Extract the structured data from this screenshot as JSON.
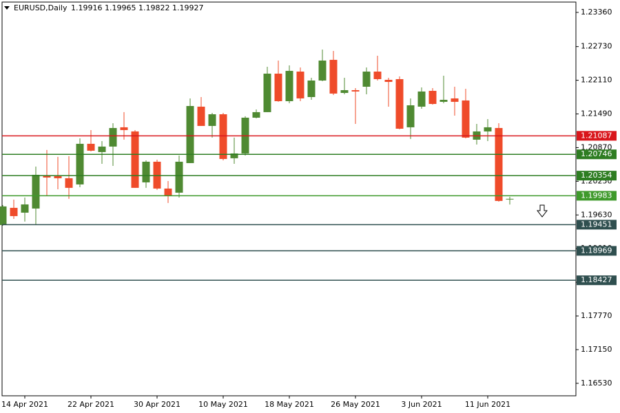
{
  "chart_data": {
    "type": "candlestick",
    "title": "EURUSD,Daily",
    "categories": [
      null,
      null,
      "14 Apr 2021",
      null,
      null,
      null,
      null,
      null,
      "22 Apr 2021",
      null,
      null,
      null,
      null,
      null,
      "30 Apr 2021",
      null,
      null,
      null,
      null,
      null,
      "10 May 2021",
      null,
      null,
      null,
      null,
      null,
      "18 May 2021",
      null,
      null,
      null,
      null,
      null,
      "26 May 2021",
      null,
      null,
      null,
      null,
      null,
      "3 Jun 2021",
      null,
      null,
      null,
      null,
      null,
      "11 Jun 2021",
      null,
      null
    ],
    "open": [
      1.19444,
      1.19761,
      1.19672,
      1.19748,
      1.20357,
      1.20344,
      1.20306,
      1.20192,
      1.2094,
      1.20788,
      1.20889,
      1.21244,
      1.21168,
      1.2023,
      1.2061,
      1.20116,
      1.2004,
      1.20585,
      1.21624,
      1.21269,
      1.21484,
      1.20674,
      1.20762,
      1.21421,
      1.21523,
      1.22232,
      1.21725,
      1.2227,
      1.21801,
      1.22105,
      1.22486,
      1.21877,
      1.21928,
      1.21991,
      1.2227,
      1.22118,
      1.22131,
      1.21244,
      1.21624,
      1.21915,
      1.21713,
      1.21776,
      1.21738,
      1.21016,
      1.21168,
      1.21231,
      1.19916
    ],
    "high": [
      1.19812,
      1.19913,
      1.19951,
      1.20521,
      1.20826,
      1.20699,
      1.20712,
      1.21041,
      1.21193,
      1.2099,
      1.2132,
      1.21523,
      1.21193,
      1.20635,
      1.20648,
      1.20255,
      1.20724,
      1.21776,
      1.21801,
      1.2151,
      1.2151,
      1.21054,
      1.21447,
      1.21573,
      1.22359,
      1.22473,
      1.22384,
      1.22346,
      1.22156,
      1.22676,
      1.2265,
      1.22156,
      1.21966,
      1.22346,
      1.22562,
      1.22156,
      1.22181,
      1.21776,
      1.21979,
      1.21966,
      1.22194,
      1.21991,
      1.21953,
      1.21307,
      1.21396,
      1.2132,
      1.19965
    ],
    "low": [
      1.19432,
      1.19558,
      1.19508,
      1.19457,
      1.19977,
      1.20103,
      1.19926,
      1.20141,
      1.208,
      1.20572,
      1.20534,
      1.21016,
      1.20129,
      1.20129,
      1.20091,
      1.1985,
      1.19951,
      1.20585,
      1.21269,
      1.21054,
      1.20635,
      1.20572,
      1.20724,
      1.21408,
      1.21523,
      1.21713,
      1.21687,
      1.21725,
      1.2175,
      1.22093,
      1.21839,
      1.21852,
      1.21307,
      1.21852,
      1.22105,
      1.21624,
      1.21206,
      1.21029,
      1.21586,
      1.21662,
      1.21687,
      1.21459,
      1.21041,
      1.20927,
      1.2099,
      1.19875,
      1.19822
    ],
    "close": [
      1.19787,
      1.19609,
      1.19824,
      1.20369,
      1.20319,
      1.20306,
      1.20129,
      1.2094,
      1.20813,
      1.20889,
      1.21231,
      1.21193,
      1.20129,
      1.2061,
      1.20116,
      1.19977,
      1.2061,
      1.21636,
      1.21269,
      1.21484,
      1.20661,
      1.20762,
      1.21421,
      1.21523,
      1.22232,
      1.21725,
      1.22283,
      1.21776,
      1.22105,
      1.22473,
      1.21865,
      1.21928,
      1.21903,
      1.2227,
      1.22131,
      1.2208,
      1.21218,
      1.21649,
      1.21903,
      1.21674,
      1.2175,
      1.21713,
      1.21054,
      1.21168,
      1.21244,
      1.19888,
      1.19927
    ],
    "up_color": "#4f8a32",
    "down_color": "#ef4b2a",
    "ylim": [
      1.163,
      1.2355
    ],
    "yticks": [
      {
        "value": 1.2336,
        "label": "1.23360"
      },
      {
        "value": 1.2273,
        "label": "1.22730"
      },
      {
        "value": 1.2211,
        "label": "1.22110"
      },
      {
        "value": 1.2149,
        "label": "1.21490"
      },
      {
        "value": 1.2087,
        "label": "1.20870"
      },
      {
        "value": 1.2025,
        "label": "1.20250"
      },
      {
        "value": 1.1963,
        "label": "1.19630"
      },
      {
        "value": 1.1901,
        "label": "1.19010"
      },
      {
        "value": 1.1839,
        "label": "1.18390"
      },
      {
        "value": 1.1777,
        "label": "1.17770"
      },
      {
        "value": 1.1715,
        "label": "1.17150"
      },
      {
        "value": 1.1653,
        "label": "1.16530"
      }
    ],
    "levels": [
      {
        "value": 1.21087,
        "color": "#d9161c"
      },
      {
        "value": 1.20746,
        "color": "#2e7d22"
      },
      {
        "value": 1.20354,
        "color": "#2e7d22"
      },
      {
        "value": 1.19983,
        "color": "#3f9a2c"
      },
      {
        "value": 1.19451,
        "color": "#2f4f4f"
      },
      {
        "value": 1.18969,
        "color": "#2f4f4f"
      },
      {
        "value": 1.18427,
        "color": "#2f4f4f"
      }
    ]
  }
}
